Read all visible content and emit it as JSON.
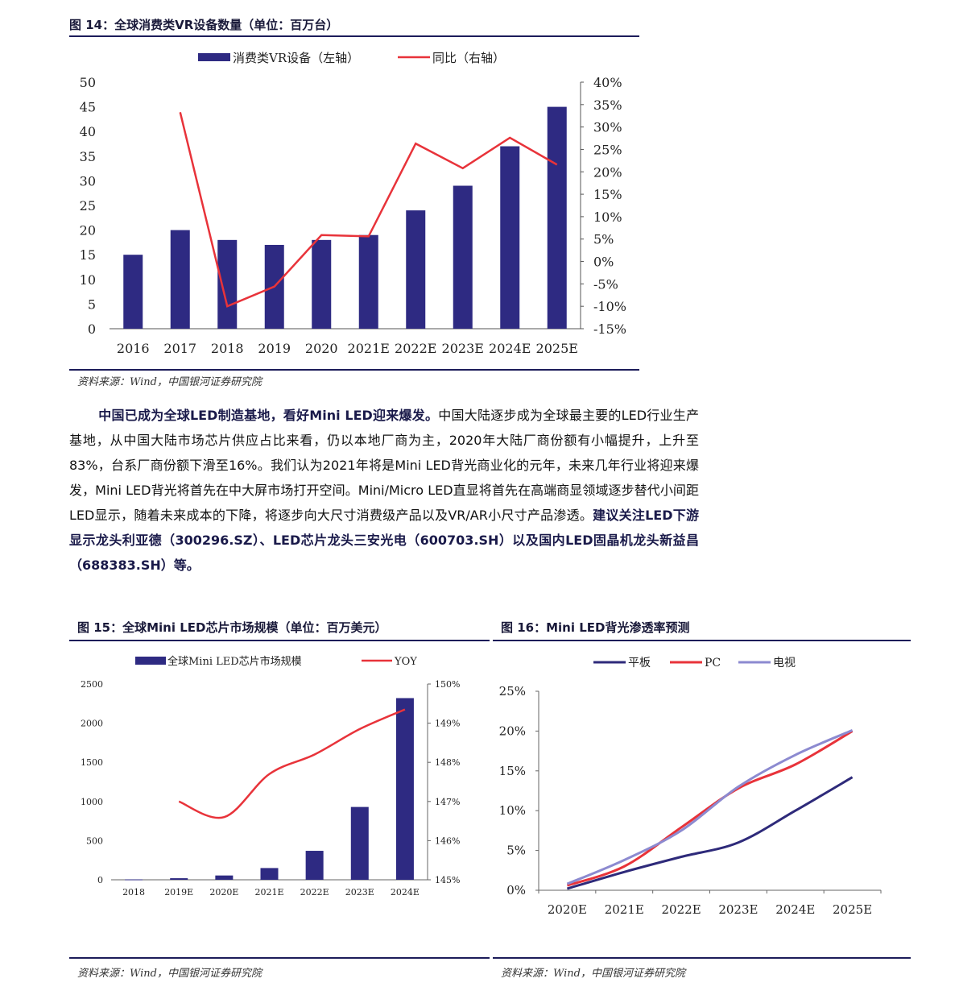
{
  "fig14": {
    "title": "图 14：全球消费类VR设备数量（单位：百万台）",
    "source": "资料来源：Wind，中国银河证券研究院",
    "chart_data": {
      "type": "bar",
      "categories": [
        "2016",
        "2017",
        "2018",
        "2019",
        "2020",
        "2021E",
        "2022E",
        "2023E",
        "2024E",
        "2025E"
      ],
      "series": [
        {
          "name": "消费类VR设备（左轴）",
          "type": "bar",
          "axis": "left",
          "values": [
            15,
            20,
            18,
            17,
            18,
            19,
            24,
            29,
            37,
            45
          ]
        },
        {
          "name": "同比（右轴）",
          "type": "line",
          "axis": "right",
          "values": [
            null,
            33.3,
            -10,
            -5.6,
            5.9,
            5.6,
            26.3,
            20.8,
            27.6,
            21.6
          ]
        }
      ],
      "ylim_left": [
        0,
        50
      ],
      "ylim_right": [
        -15,
        40
      ],
      "left_ticks": [
        "0",
        "5",
        "10",
        "15",
        "20",
        "25",
        "30",
        "35",
        "40",
        "45",
        "50"
      ],
      "right_ticks": [
        "-15%",
        "-10%",
        "-5%",
        "0%",
        "5%",
        "10%",
        "15%",
        "20%",
        "25%",
        "30%",
        "35%",
        "40%"
      ]
    }
  },
  "paragraph": {
    "lead": "中国已成为全球LED制造基地，看好Mini LED迎来爆发。",
    "body": "中国大陆逐步成为全球最主要的LED行业生产基地，从中国大陆市场芯片供应占比来看，仍以本地厂商为主，2020年大陆厂商份额有小幅提升，上升至83%，台系厂商份额下滑至16%。我们认为2021年将是Mini LED背光商业化的元年，未来几年行业将迎来爆发，Mini LED背光将首先在中大屏市场打开空间。Mini/Micro LED直显将首先在高端商显领域逐步替代小间距LED显示，随着未来成本的下降，将逐步向大尺寸消费级产品以及VR/AR小尺寸产品渗透。",
    "tail": "建议关注LED下游显示龙头利亚德（300296.SZ）、LED芯片龙头三安光电（600703.SH）以及国内LED固晶机龙头新益昌（688383.SH）等。"
  },
  "fig15": {
    "title": "图 15：全球Mini LED芯片市场规模（单位：百万美元）",
    "source": "资料来源：Wind，中国银河证券研究院",
    "chart_data": {
      "type": "bar",
      "categories": [
        "2018",
        "2019E",
        "2020E",
        "2021E",
        "2022E",
        "2023E",
        "2024E"
      ],
      "series": [
        {
          "name": "全球Mini LED芯片市场规模",
          "type": "bar",
          "axis": "left",
          "values": [
            5,
            20,
            55,
            150,
            370,
            930,
            2320
          ]
        },
        {
          "name": "YOY",
          "type": "line",
          "axis": "right",
          "values": [
            null,
            147.0,
            146.6,
            147.7,
            148.2,
            148.85,
            149.35
          ]
        }
      ],
      "ylim_left": [
        0,
        2500
      ],
      "ylim_right": [
        145,
        150
      ],
      "left_ticks": [
        "0",
        "500",
        "1000",
        "1500",
        "2000",
        "2500"
      ],
      "right_ticks": [
        "145%",
        "146%",
        "147%",
        "148%",
        "149%",
        "150%"
      ]
    }
  },
  "fig16": {
    "title": "图 16：Mini LED背光渗透率预测",
    "source": "资料来源：Wind，中国银河证券研究院",
    "chart_data": {
      "type": "line",
      "categories": [
        "2020E",
        "2021E",
        "2022E",
        "2023E",
        "2024E",
        "2025E"
      ],
      "series": [
        {
          "name": "平板",
          "color": "#2e2a7a",
          "values": [
            0.2,
            2.3,
            4.2,
            6.0,
            10.0,
            14.2
          ]
        },
        {
          "name": "PC",
          "color": "#e8333a",
          "values": [
            0.6,
            3.0,
            7.9,
            12.8,
            15.8,
            20.0
          ]
        },
        {
          "name": "电视",
          "color": "#8c8ad0",
          "values": [
            0.8,
            3.8,
            7.5,
            13.0,
            17.0,
            20.1
          ]
        }
      ],
      "ylim": [
        0,
        25
      ],
      "ticks": [
        "0%",
        "5%",
        "10%",
        "15%",
        "20%",
        "25%"
      ]
    }
  }
}
